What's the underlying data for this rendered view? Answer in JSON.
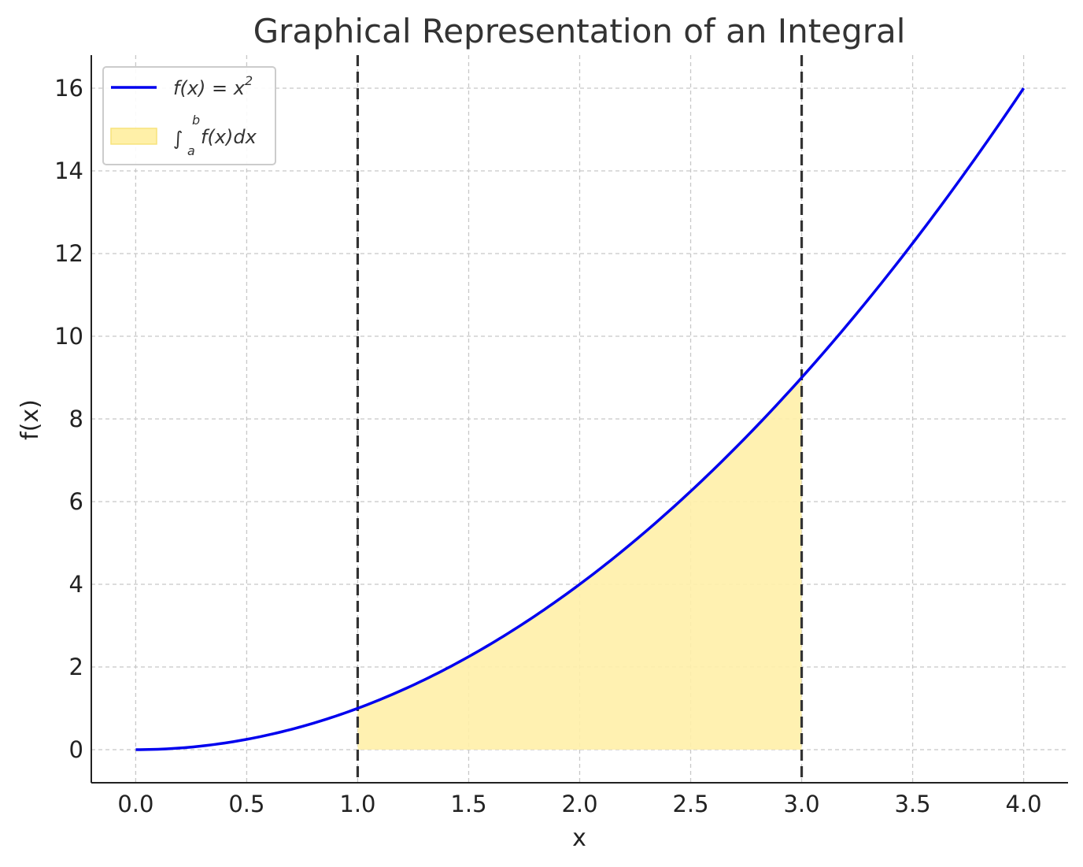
{
  "chart_data": {
    "type": "line",
    "title": "Graphical Representation of an Integral",
    "xlabel": "x",
    "ylabel": "f(x)",
    "xlim": [
      -0.2,
      4.2
    ],
    "ylim": [
      -0.8,
      16.8
    ],
    "xticks": [
      0.0,
      0.5,
      1.0,
      1.5,
      2.0,
      2.5,
      3.0,
      3.5,
      4.0
    ],
    "xtick_labels": [
      "0.0",
      "0.5",
      "1.0",
      "1.5",
      "2.0",
      "2.5",
      "3.0",
      "3.5",
      "4.0"
    ],
    "yticks": [
      0,
      2,
      4,
      6,
      8,
      10,
      12,
      14,
      16
    ],
    "ytick_labels": [
      "0",
      "2",
      "4",
      "6",
      "8",
      "10",
      "12",
      "14",
      "16"
    ],
    "grid": true,
    "legend_position": "top-left",
    "series": [
      {
        "name": "f(x) = x²",
        "color": "#0000ee",
        "x": [
          0.0,
          0.25,
          0.5,
          0.75,
          1.0,
          1.25,
          1.5,
          1.75,
          2.0,
          2.25,
          2.5,
          2.75,
          3.0,
          3.25,
          3.5,
          3.75,
          4.0
        ],
        "y": [
          0.0,
          0.0625,
          0.25,
          0.5625,
          1.0,
          1.5625,
          2.25,
          3.0625,
          4.0,
          5.0625,
          6.25,
          7.5625,
          9.0,
          10.5625,
          12.25,
          14.0625,
          16.0
        ]
      }
    ],
    "shaded_area": {
      "name": "∫ₐᵇ f(x)dx",
      "color": "#fff0a8",
      "from": 1.0,
      "to": 3.0
    },
    "vertical_lines": [
      1.0,
      3.0
    ],
    "legend": {
      "line_label": "f(x) = x",
      "line_label_sup": "2",
      "area_label_integral": "∫",
      "area_label_lower": "a",
      "area_label_upper": "b",
      "area_label_body": "f(x)dx"
    }
  }
}
